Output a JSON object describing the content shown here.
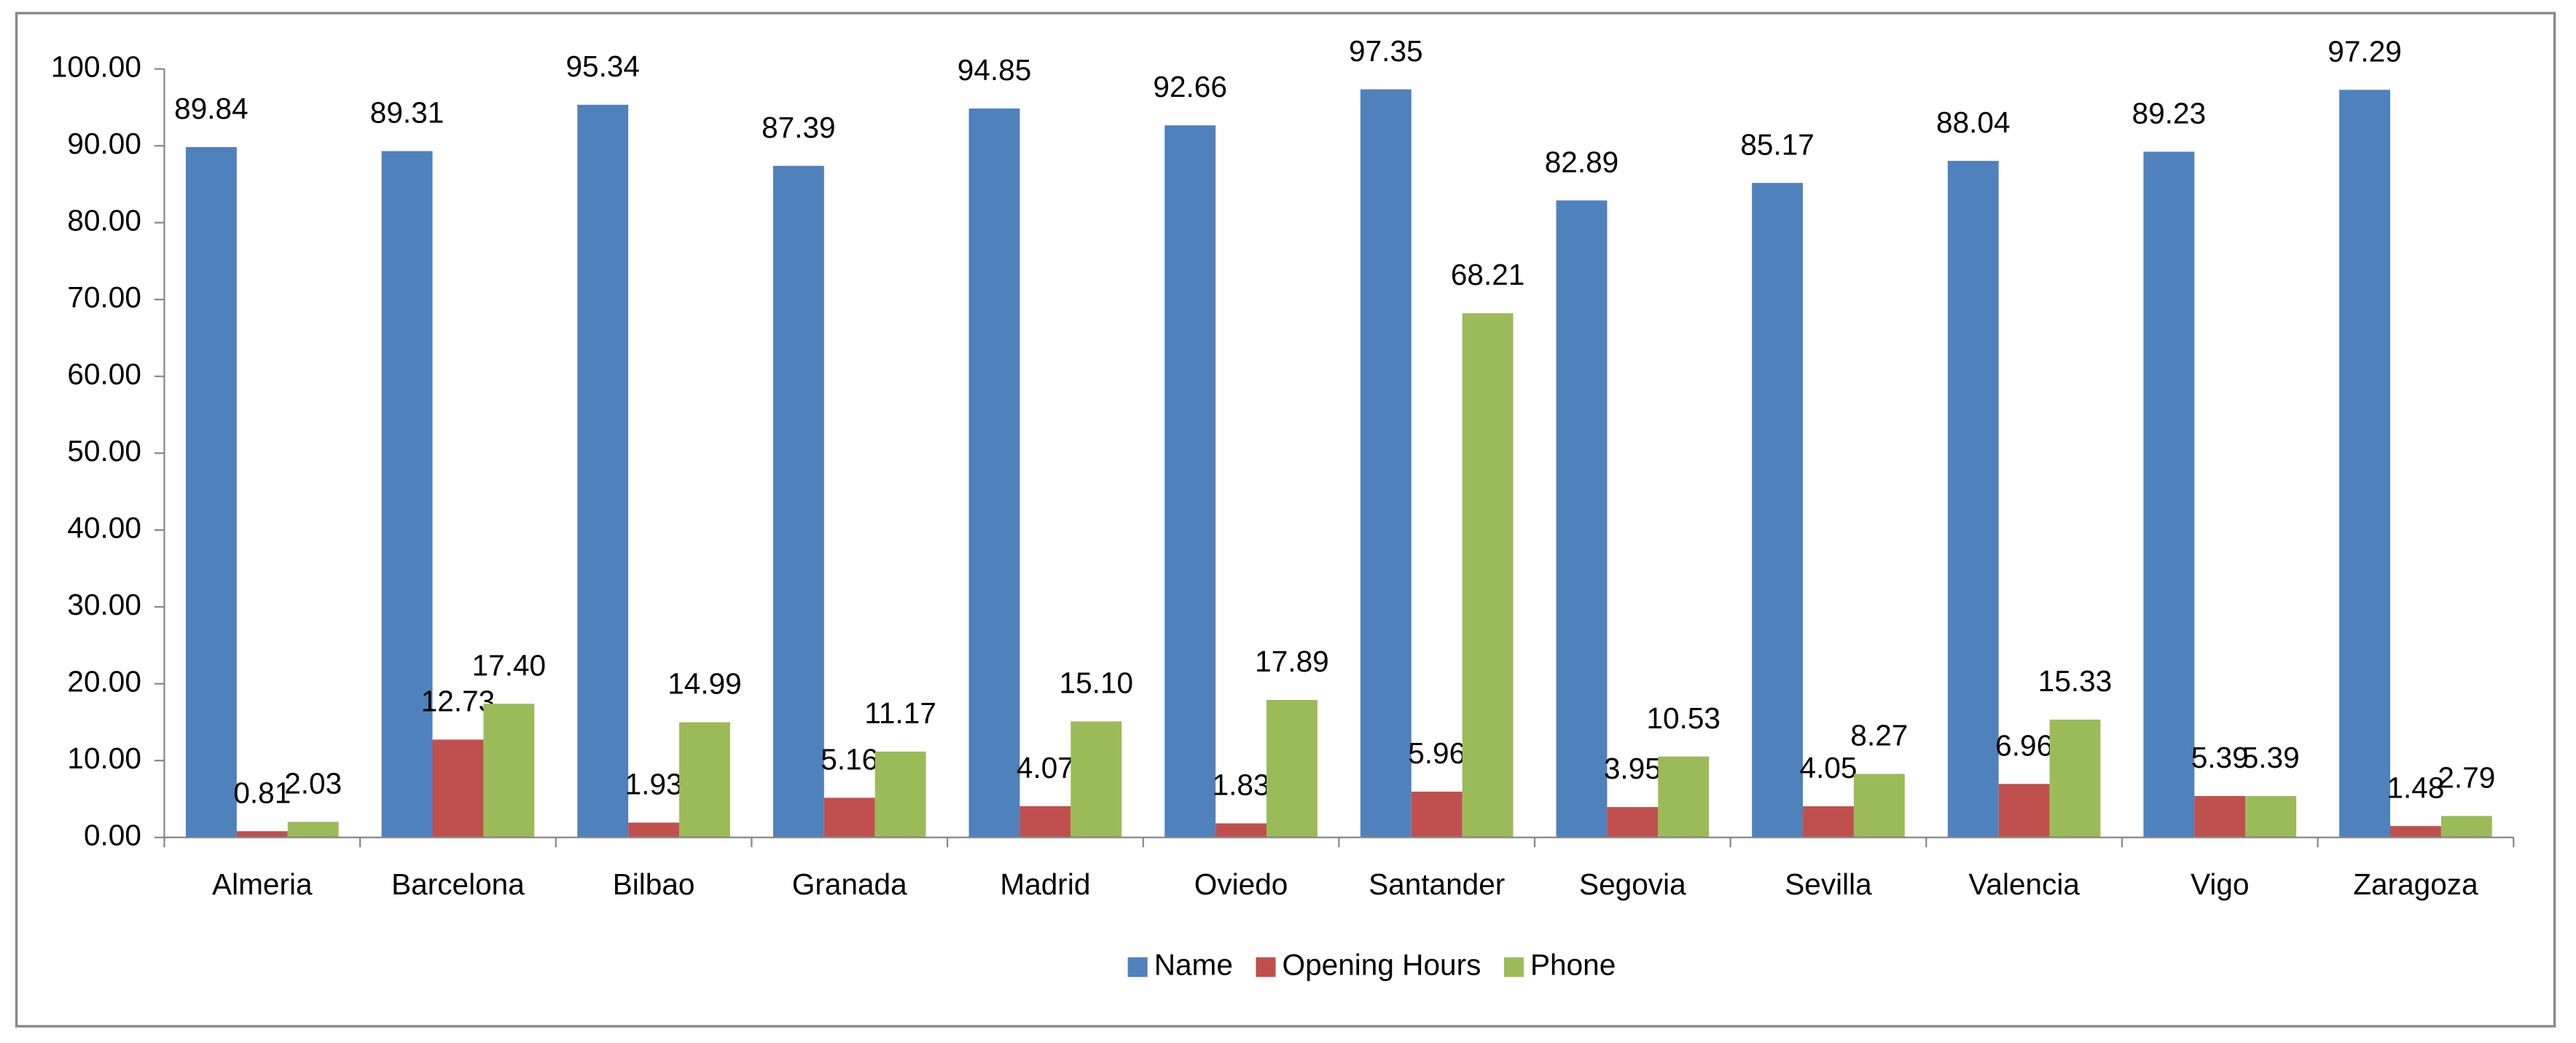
{
  "chart_data": {
    "type": "bar",
    "categories": [
      "Almeria",
      "Barcelona",
      "Bilbao",
      "Granada",
      "Madrid",
      "Oviedo",
      "Santander",
      "Segovia",
      "Sevilla",
      "Valencia",
      "Vigo",
      "Zaragoza"
    ],
    "series": [
      {
        "name": "Name",
        "color": "#4f81bd",
        "values": [
          89.84,
          89.31,
          95.34,
          87.39,
          94.85,
          92.66,
          97.35,
          82.89,
          85.17,
          88.04,
          89.23,
          97.29
        ],
        "value_labels": [
          "89.84",
          "89.31",
          "95.34",
          "87.39",
          "94.85",
          "92.66",
          "97.35",
          "82.89",
          "85.17",
          "88.04",
          "89.23",
          "97.29"
        ]
      },
      {
        "name": "Opening Hours",
        "color": "#c0504d",
        "values": [
          0.81,
          12.73,
          1.93,
          5.16,
          4.07,
          1.83,
          5.96,
          3.95,
          4.05,
          6.96,
          5.39,
          1.48
        ],
        "value_labels": [
          "0.81",
          "12.73",
          "1.93",
          "5.16",
          "4.07",
          "1.83",
          "5.96",
          "3.95",
          "4.05",
          "6.96",
          "5.39",
          "1.48"
        ]
      },
      {
        "name": "Phone",
        "color": "#9bbb59",
        "values": [
          2.03,
          17.4,
          14.99,
          11.17,
          15.1,
          17.89,
          68.21,
          10.53,
          8.27,
          15.33,
          5.39,
          2.79
        ],
        "value_labels": [
          "2.03",
          "17.40",
          "14.99",
          "11.17",
          "15.10",
          "17.89",
          "68.21",
          "10.53",
          "8.27",
          "15.33",
          "5.39",
          "2.79"
        ]
      }
    ],
    "ylim": [
      0,
      100
    ],
    "yticks": [
      {
        "value": 0,
        "label": "0.00"
      },
      {
        "value": 10,
        "label": "10.00"
      },
      {
        "value": 20,
        "label": "20.00"
      },
      {
        "value": 30,
        "label": "30.00"
      },
      {
        "value": 40,
        "label": "40.00"
      },
      {
        "value": 50,
        "label": "50.00"
      },
      {
        "value": 60,
        "label": "60.00"
      },
      {
        "value": 70,
        "label": "70.00"
      },
      {
        "value": 80,
        "label": "80.00"
      },
      {
        "value": 90,
        "label": "90.00"
      },
      {
        "value": 100,
        "label": "100.00"
      }
    ],
    "legend": "bottom"
  }
}
